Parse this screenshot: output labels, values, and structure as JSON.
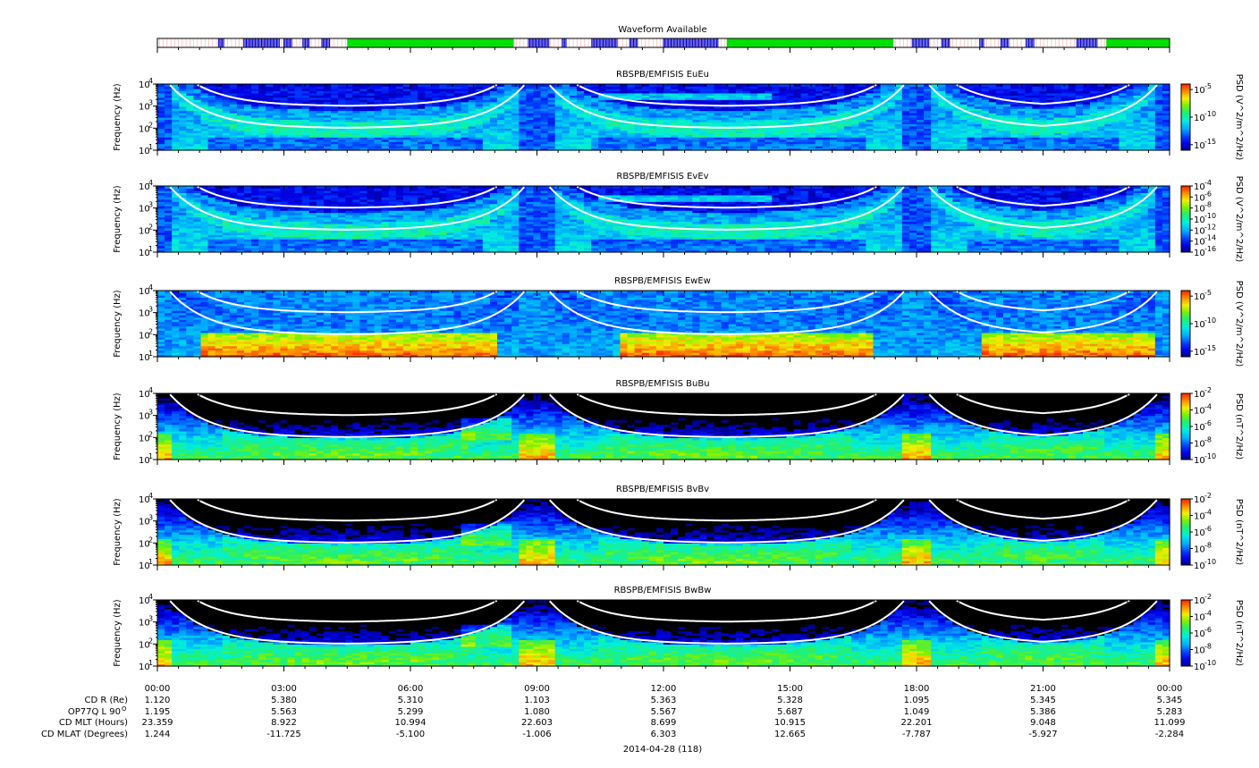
{
  "figure": {
    "waveform_title": "Waveform Available",
    "date_label": "2014-04-28 (118)",
    "colors": {
      "waveform_empty": "#ffffff",
      "waveform_blue": "#0000cc",
      "waveform_green": "#00e000",
      "waveform_red": "#ff0000",
      "curve": "#ffffff"
    }
  },
  "chart_data": {
    "type": "heatmap",
    "x_tick_labels": [
      "00:00",
      "03:00",
      "06:00",
      "09:00",
      "12:00",
      "15:00",
      "18:00",
      "21:00",
      "00:00"
    ],
    "xlim_hours": [
      0,
      24
    ],
    "waveform_available": {
      "green_intervals_hours": [
        [
          4.5,
          8.45
        ],
        [
          13.5,
          17.45
        ],
        [
          22.5,
          24.0
        ]
      ],
      "blue_segments_hours": [
        [
          1.45,
          1.6
        ],
        [
          2.05,
          2.9
        ],
        [
          3.0,
          3.2
        ],
        [
          3.45,
          3.6
        ],
        [
          3.9,
          4.1
        ],
        [
          8.8,
          9.3
        ],
        [
          9.6,
          9.7
        ],
        [
          10.3,
          10.9
        ],
        [
          11.2,
          11.4
        ],
        [
          12.0,
          13.3
        ],
        [
          17.9,
          18.3
        ],
        [
          18.6,
          18.8
        ],
        [
          19.5,
          19.6
        ],
        [
          20.0,
          20.2
        ],
        [
          20.6,
          20.8
        ],
        [
          21.8,
          22.3
        ]
      ]
    },
    "panels": [
      {
        "title": "RBSPB/EMFISIS  EuEu",
        "ylabel": "Frequency (Hz)",
        "yticks": [
          "10",
          "10",
          "10",
          "10"
        ],
        "yexp": [
          "1",
          "2",
          "3",
          "4"
        ],
        "cbar_label": "PSD (V^2/m^2/Hz)",
        "cbar_ticks": [
          "10",
          "10",
          "10"
        ],
        "cbar_exp": [
          "-5",
          "-10",
          "-15"
        ],
        "cbar_log_range": [
          -16,
          -4
        ],
        "cbar_tick_values": [
          -5,
          -10,
          -15
        ],
        "kind": "E"
      },
      {
        "title": "RBSPB/EMFISIS  EvEv",
        "ylabel": "Frequency (Hz)",
        "yticks": [
          "10",
          "10",
          "10",
          "10"
        ],
        "yexp": [
          "1",
          "2",
          "3",
          "4"
        ],
        "cbar_label": "PSD (V^2/m^2/Hz)",
        "cbar_ticks": [
          "10",
          "10",
          "10",
          "10",
          "10",
          "10",
          "10"
        ],
        "cbar_exp": [
          "-4",
          "-6",
          "-8",
          "-10",
          "-12",
          "-14",
          "-16"
        ],
        "cbar_log_range": [
          -16,
          -4
        ],
        "cbar_tick_values": [
          -4,
          -6,
          -8,
          -10,
          -12,
          -14,
          -16
        ],
        "kind": "E"
      },
      {
        "title": "RBSPB/EMFISIS  EwEw",
        "ylabel": "Frequency (Hz)",
        "yticks": [
          "10",
          "10",
          "10",
          "10"
        ],
        "yexp": [
          "1",
          "2",
          "3",
          "4"
        ],
        "cbar_label": "PSD (V^2/m^2/Hz)",
        "cbar_ticks": [
          "10",
          "10",
          "10"
        ],
        "cbar_exp": [
          "-5",
          "-10",
          "-15"
        ],
        "cbar_log_range": [
          -16,
          -4
        ],
        "cbar_tick_values": [
          -5,
          -10,
          -15
        ],
        "kind": "Ew"
      },
      {
        "title": "RBSPB/EMFISIS  BuBu",
        "ylabel": "Frequency (Hz)",
        "yticks": [
          "10",
          "10",
          "10",
          "10"
        ],
        "yexp": [
          "1",
          "2",
          "3",
          "4"
        ],
        "cbar_label": "PSD (nT^2/Hz)",
        "cbar_ticks": [
          "10",
          "10",
          "10",
          "10",
          "10"
        ],
        "cbar_exp": [
          "-2",
          "-4",
          "-6",
          "-8",
          "-10"
        ],
        "cbar_log_range": [
          -10,
          -2
        ],
        "cbar_tick_values": [
          -2,
          -4,
          -6,
          -8,
          -10
        ],
        "kind": "B"
      },
      {
        "title": "RBSPB/EMFISIS  BvBv",
        "ylabel": "Frequency (Hz)",
        "yticks": [
          "10",
          "10",
          "10",
          "10"
        ],
        "yexp": [
          "1",
          "2",
          "3",
          "4"
        ],
        "cbar_label": "PSD (nT^2/Hz)",
        "cbar_ticks": [
          "10",
          "10",
          "10",
          "10",
          "10"
        ],
        "cbar_exp": [
          "-2",
          "-4",
          "-6",
          "-8",
          "-10"
        ],
        "cbar_log_range": [
          -10,
          -2
        ],
        "cbar_tick_values": [
          -2,
          -4,
          -6,
          -8,
          -10
        ],
        "kind": "B"
      },
      {
        "title": "RBSPB/EMFISIS  BwBw",
        "ylabel": "Frequency (Hz)",
        "yticks": [
          "10",
          "10",
          "10",
          "10"
        ],
        "yexp": [
          "1",
          "2",
          "3",
          "4"
        ],
        "cbar_label": "PSD (nT^2/Hz)",
        "cbar_ticks": [
          "10",
          "10",
          "10",
          "10",
          "10"
        ],
        "cbar_exp": [
          "-2",
          "-4",
          "-6",
          "-8",
          "-10"
        ],
        "cbar_log_range": [
          -10,
          -2
        ],
        "cbar_tick_values": [
          -2,
          -4,
          -6,
          -8,
          -10
        ],
        "kind": "B"
      }
    ],
    "ephemeris": {
      "labels": [
        "CD R (Re)",
        "OP77Q L 90",
        "CD MLT (Hours)",
        "CD MLAT (Degrees)"
      ],
      "label_sup": [
        "",
        "O",
        "",
        ""
      ],
      "rows": [
        [
          "1.120",
          "5.380",
          "5.310",
          "1.103",
          "5.363",
          "5.328",
          "1.095",
          "5.345",
          "5.345"
        ],
        [
          "1.195",
          "5.563",
          "5.299",
          "1.080",
          "5.567",
          "5.687",
          "1.049",
          "5.386",
          "5.283"
        ],
        [
          "23.359",
          "8.922",
          "10.994",
          "22.603",
          "8.699",
          "10.915",
          "22.201",
          "9.048",
          "11.099"
        ],
        [
          "1.244",
          "-11.725",
          "-5.100",
          "-1.006",
          "6.303",
          "12.665",
          "-7.787",
          "-5.927",
          "-2.284"
        ]
      ]
    },
    "perigee_hours": [
      0.0,
      9.0,
      18.0
    ]
  }
}
